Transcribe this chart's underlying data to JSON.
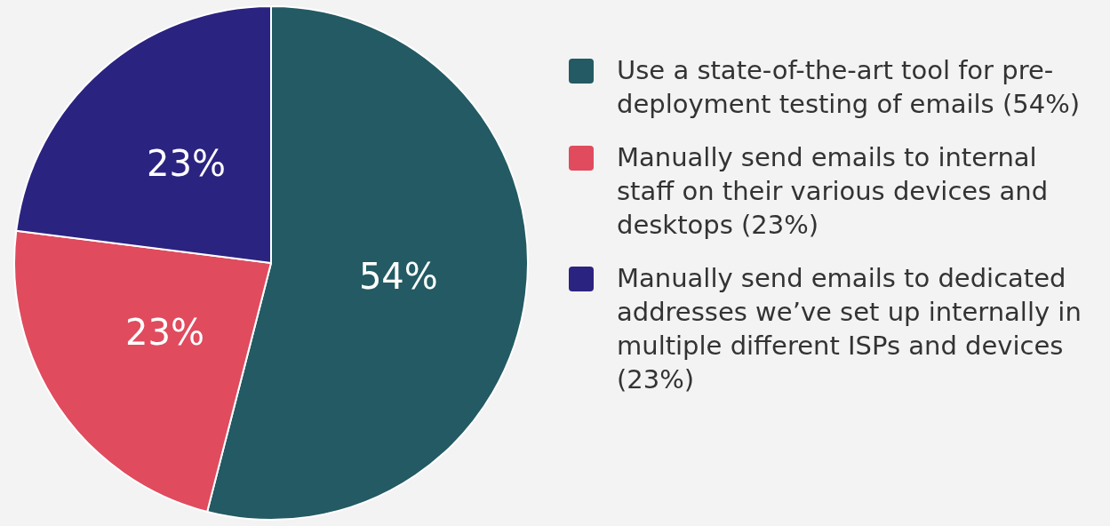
{
  "chart_data": {
    "type": "pie",
    "categories": [
      "Use a state-of-the-art tool for pre-deployment testing of emails (54%)",
      "Manually send emails to internal staff on their various devices and desktops (23%)",
      "Manually send emails to dedicated addresses we’ve set up internally in multiple different ISPs and devices (23%)"
    ],
    "values": [
      54,
      23,
      23
    ],
    "colors": [
      "#235a63",
      "#e04b5e",
      "#2b2380"
    ],
    "value_labels": [
      "54%",
      "23%",
      "23%"
    ],
    "legend": "right"
  }
}
